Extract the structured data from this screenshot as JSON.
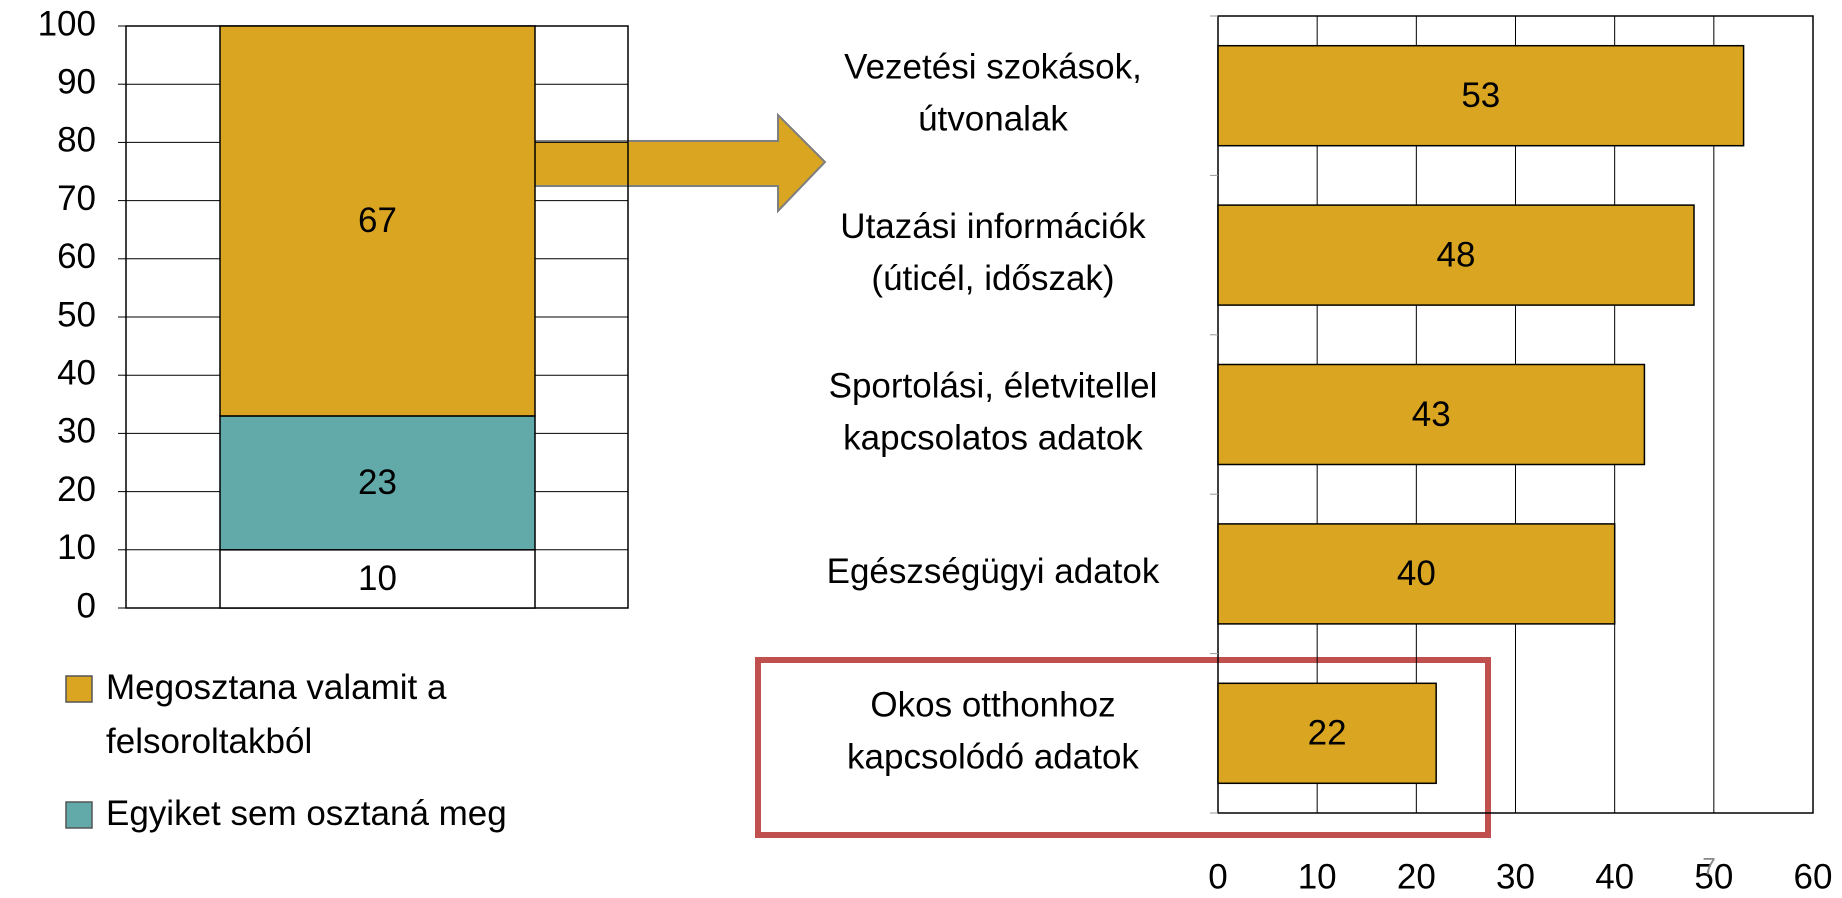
{
  "chart_data": [
    {
      "type": "stacked_bar",
      "categories": [
        null
      ],
      "series": [
        {
          "color": "#ffffff",
          "values": [
            10
          ]
        },
        {
          "name": "Egyiket sem osztaná meg",
          "color": "#62aaaa",
          "values": [
            23
          ]
        },
        {
          "name": "Megosztana valamit a\nfelsoroltakból",
          "color": "#daa520",
          "values": [
            67
          ]
        }
      ],
      "ylim": [
        0,
        100
      ],
      "yticks": [
        0,
        10,
        20,
        30,
        40,
        50,
        60,
        70,
        80,
        90,
        100
      ],
      "grid": true
    },
    {
      "type": "hbar",
      "categories": [
        "Vezetési szokások,\nútvonalak",
        "Utazási információk\n(úticél, időszak)",
        "Sportolási, életvitellel\nkapcsolatos adatok",
        "Egészségügyi adatok",
        "Okos otthonhoz\nkapcsolódó adatok"
      ],
      "values": [
        53,
        48,
        43,
        40,
        22
      ],
      "color": "#daa520",
      "xlim": [
        0,
        60
      ],
      "xticks": [
        0,
        10,
        20,
        30,
        40,
        50,
        60
      ],
      "grid": true,
      "page_number": "7"
    }
  ]
}
